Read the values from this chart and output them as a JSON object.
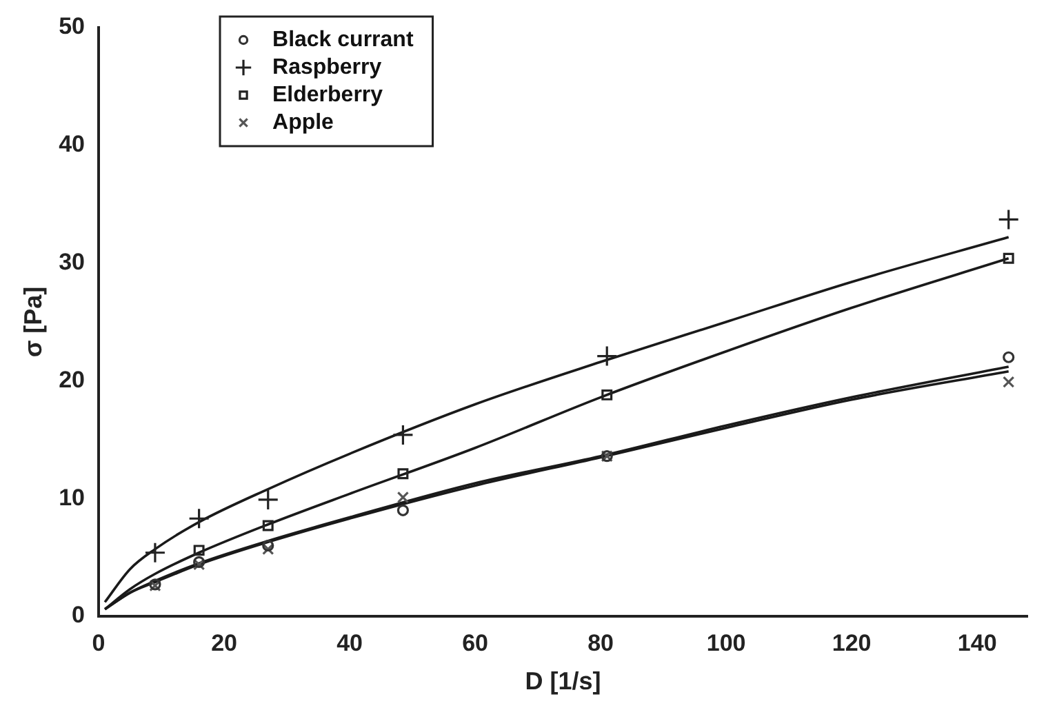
{
  "chart_data": {
    "type": "scatter",
    "xlabel": "D [1/s]",
    "ylabel": "σ [Pa]",
    "xlim": [
      0,
      148
    ],
    "xticks": [
      0,
      20,
      40,
      60,
      80,
      100,
      120,
      140
    ],
    "ylim": [
      0,
      50
    ],
    "yticks": [
      0,
      10,
      20,
      30,
      40,
      50
    ],
    "grid": false,
    "legend": "top left",
    "series": [
      {
        "name": "Black currant",
        "color": "#333333",
        "marker": "circle",
        "x": [
          9,
          16,
          27,
          48.5,
          81,
          145
        ],
        "values": [
          2.7,
          4.6,
          6.0,
          9.0,
          13.6,
          22.0
        ]
      },
      {
        "name": "Raspberry",
        "color": "#222222",
        "marker": "cross",
        "x": [
          9,
          16,
          27,
          48.5,
          81,
          145
        ],
        "values": [
          5.4,
          8.3,
          9.9,
          15.4,
          22.1,
          33.7
        ]
      },
      {
        "name": "Elderberry",
        "color": "#222222",
        "marker": "square",
        "x": [
          16,
          27,
          48.5,
          81,
          145
        ],
        "values": [
          5.6,
          7.7,
          12.1,
          18.8,
          30.4
        ]
      },
      {
        "name": "Apple",
        "color": "#555555",
        "marker": "x",
        "x": [
          9,
          16,
          27,
          48.5,
          81,
          145
        ],
        "values": [
          2.6,
          4.4,
          5.7,
          10.1,
          13.6,
          19.9
        ]
      },
      {
        "type": "line",
        "color": "#1a1a1a",
        "marker": "none",
        "x": [
          1,
          5,
          9,
          16,
          27,
          40,
          60,
          80,
          100,
          120,
          145
        ],
        "values": [
          1.2,
          4.0,
          5.7,
          8.0,
          10.8,
          13.8,
          18,
          21.6,
          25,
          28.4,
          32.2
        ]
      },
      {
        "type": "line",
        "color": "#1a1a1a",
        "marker": "none",
        "x": [
          1,
          5,
          9,
          16,
          27,
          40,
          60,
          80,
          100,
          120,
          145
        ],
        "values": [
          0.6,
          2.3,
          3.6,
          5.4,
          7.8,
          10.4,
          14.3,
          18.6,
          22.5,
          26.2,
          30.4
        ]
      },
      {
        "type": "line",
        "color": "#1a1a1a",
        "marker": "none",
        "x": [
          1,
          5,
          9,
          16,
          27,
          40,
          60,
          80,
          100,
          120,
          145
        ],
        "values": [
          0.6,
          2.0,
          3.0,
          4.5,
          6.4,
          8.4,
          11.3,
          13.6,
          16.2,
          18.6,
          21.2
        ]
      },
      {
        "type": "line",
        "color": "#1a1a1a",
        "marker": "none",
        "x": [
          1,
          5,
          9,
          16,
          27,
          40,
          60,
          80,
          100,
          120,
          145
        ],
        "values": [
          0.6,
          2.0,
          2.9,
          4.4,
          6.3,
          8.3,
          11.1,
          13.5,
          16.0,
          18.4,
          20.8
        ]
      }
    ]
  }
}
